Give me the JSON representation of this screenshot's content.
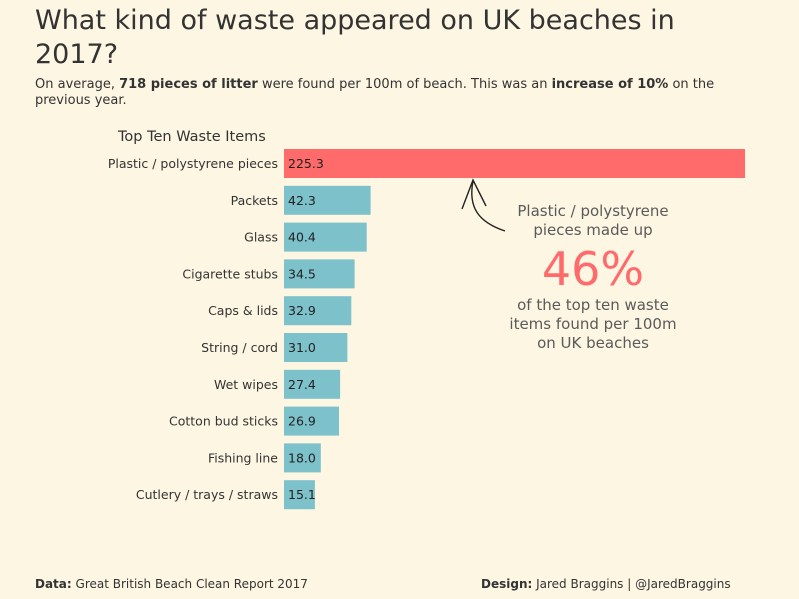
{
  "header": {
    "title": "What kind of waste appeared on UK beaches in 2017?",
    "subtitle_parts": {
      "p1": "On average, ",
      "b1": "718 pieces of litter",
      "p2": " were found per 100m of beach. This was an ",
      "b2": "increase of 10%",
      "p3": " on the previous year."
    }
  },
  "annotation": {
    "line1": "Plastic / polystyrene",
    "line2": "pieces made up",
    "big_value": "46%",
    "line3": "of the top ten waste",
    "line4": "items found per 100m",
    "line5": "on UK beaches"
  },
  "footer": {
    "data_label": "Data:",
    "data_value": " Great British Beach Clean Report 2017",
    "design_label": "Design:",
    "design_value": " Jared Braggins | @JaredBraggins"
  },
  "colors": {
    "highlight": "#ff6b6b",
    "bar": "#7dc1cb",
    "background": "#fdf6e3"
  },
  "chart_data": {
    "type": "bar",
    "orientation": "horizontal",
    "title": "Top Ten Waste Items",
    "categories": [
      "Plastic / polystyrene pieces",
      "Packets",
      "Glass",
      "Cigarette stubs",
      "Caps & lids",
      "String / cord",
      "Wet wipes",
      "Cotton bud sticks",
      "Fishing line",
      "Cutlery / trays / straws"
    ],
    "values": [
      225.3,
      42.3,
      40.4,
      34.5,
      32.9,
      31.0,
      27.4,
      26.9,
      18.0,
      15.1
    ],
    "value_labels": [
      "225.3",
      "42.3",
      "40.4",
      "34.5",
      "32.9",
      "31.0",
      "27.4",
      "26.9",
      "18.0",
      "15.1"
    ],
    "highlight_index": 0,
    "grid": false,
    "legend": "none"
  }
}
